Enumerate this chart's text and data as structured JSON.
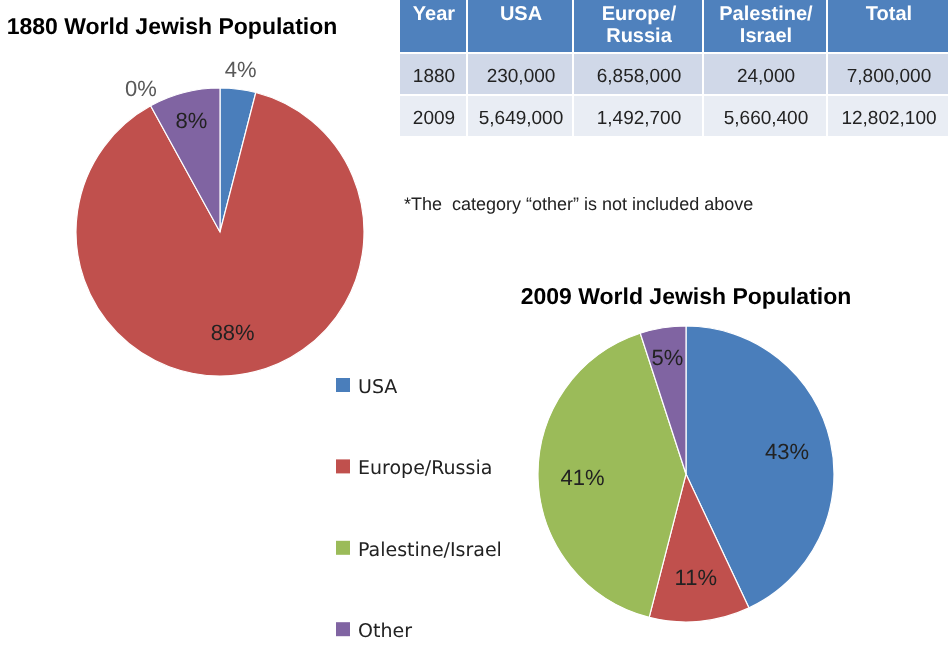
{
  "chart_data": [
    {
      "type": "pie",
      "title": "1880 World Jewish Population",
      "categories": [
        "USA",
        "Europe/Russia",
        "Palestine/Israel",
        "Other"
      ],
      "values": [
        4,
        88,
        0,
        8
      ],
      "value_labels": [
        "4%",
        "88%",
        "0%",
        "8%"
      ],
      "colors": [
        "#4a7ebb",
        "#c0504d",
        "#9bbb59",
        "#8064a2"
      ],
      "legend": "bottom right"
    },
    {
      "type": "pie",
      "title": "2009 World Jewish Population",
      "categories": [
        null,
        null,
        null,
        null
      ],
      "values": [
        43,
        11,
        41,
        5
      ],
      "value_labels": [
        "43%",
        "11%",
        "41%",
        "5%"
      ],
      "colors": [
        "#4a7ebb",
        "#c0504d",
        "#9bbb59",
        "#8064a2"
      ]
    },
    {
      "type": "other",
      "categories": [
        "Year",
        "USA",
        "Europe/Russia",
        "Palestine/Israel",
        "Total"
      ],
      "y_categories": [
        "1880",
        "2009"
      ],
      "annotations": [
        "230,000",
        "6,858,000",
        "24,000",
        "7,800,000",
        "5,649,000",
        "1,492,700",
        "5,660,400",
        "12,802,100",
        "*The  category “other” is not included above"
      ]
    }
  ]
}
